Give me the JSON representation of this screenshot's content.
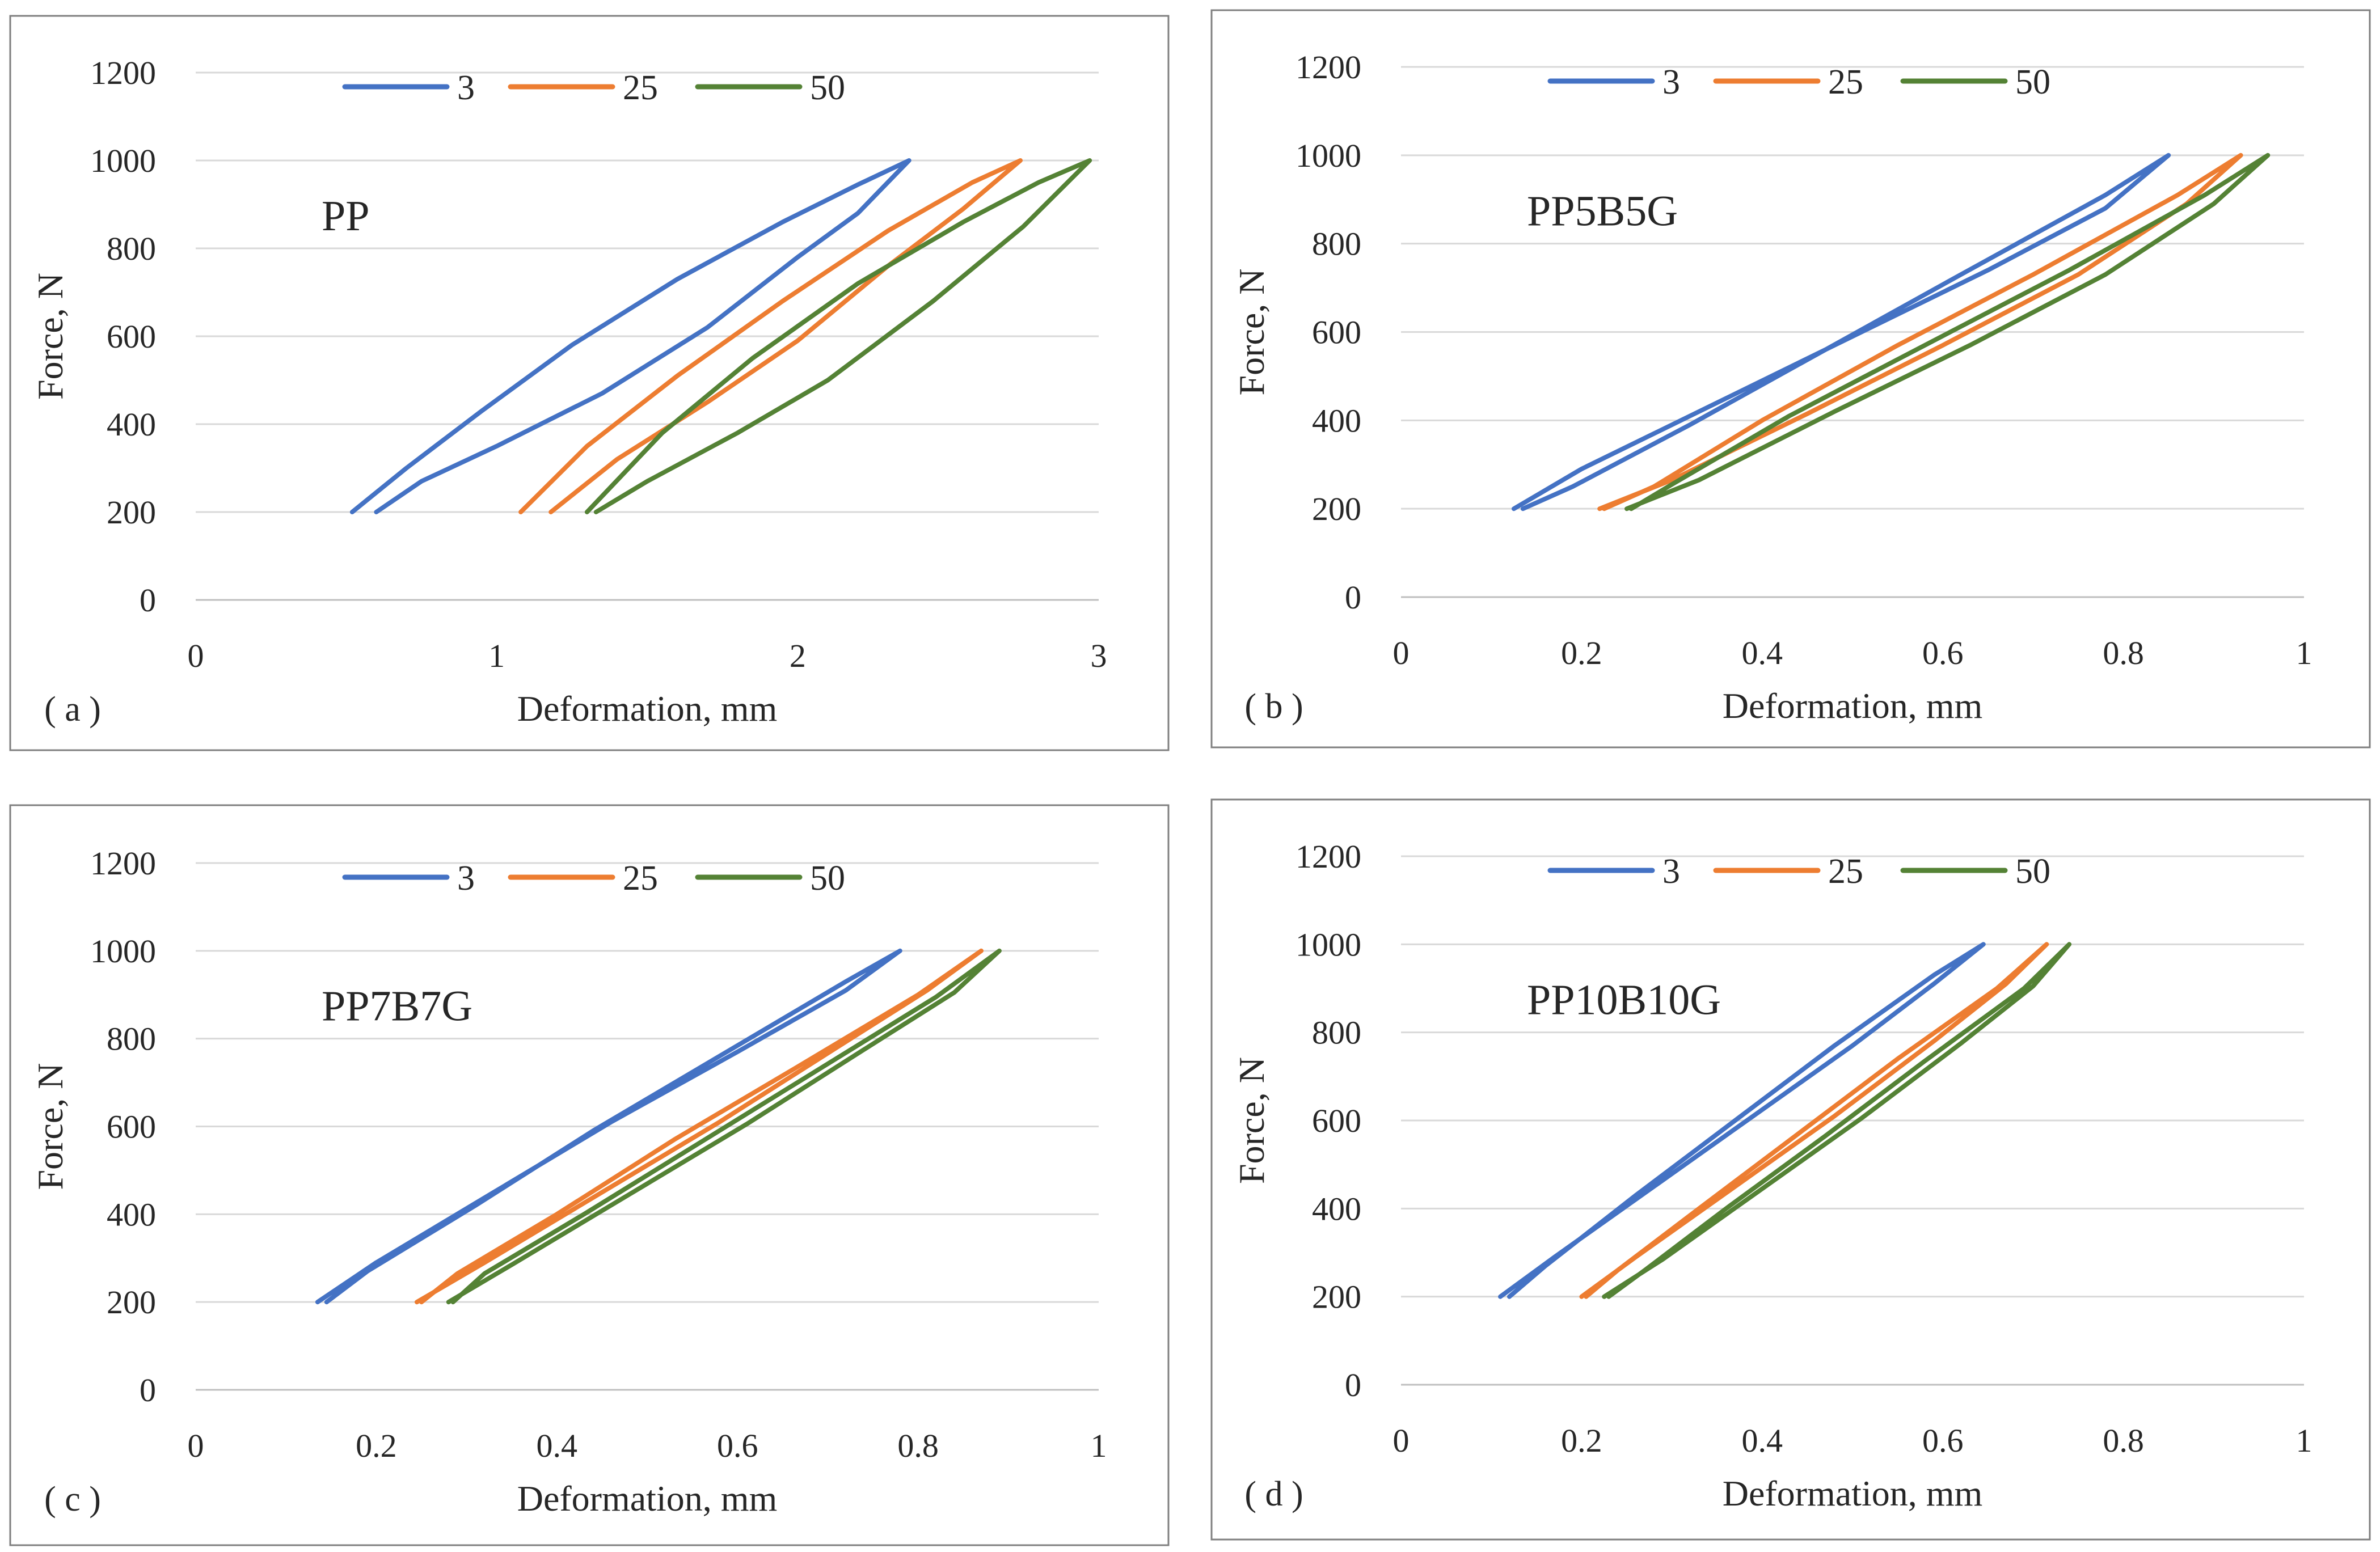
{
  "chart_data": [
    {
      "type": "line",
      "panel_label": "( a )",
      "annotation": "PP",
      "xlabel": "Deformation, mm",
      "ylabel": "Force, N",
      "xlim": [
        0,
        3
      ],
      "ylim": [
        0,
        1200
      ],
      "xticks": [
        0,
        1,
        2,
        3
      ],
      "xtick_labels": [
        "0",
        "1",
        "2",
        "3"
      ],
      "yticks": [
        0,
        200,
        400,
        600,
        800,
        1000,
        1200
      ],
      "ytick_labels": [
        "0",
        "200",
        "400",
        "600",
        "800",
        "1000",
        "1200"
      ],
      "grid": "horizontal",
      "legend_position": "top",
      "series": [
        {
          "name": "3",
          "color": "#4472C4",
          "x": [
            0.52,
            0.7,
            0.95,
            1.25,
            1.6,
            1.95,
            2.2,
            2.37,
            2.2,
            2.0,
            1.7,
            1.35,
            1.0,
            0.75,
            0.6
          ],
          "y": [
            200,
            300,
            430,
            580,
            730,
            860,
            945,
            1000,
            880,
            780,
            620,
            470,
            350,
            270,
            200
          ]
        },
        {
          "name": "25",
          "color": "#ED7D31",
          "x": [
            1.08,
            1.3,
            1.6,
            1.95,
            2.3,
            2.58,
            2.74,
            2.55,
            2.3,
            2.0,
            1.7,
            1.4,
            1.18
          ],
          "y": [
            200,
            350,
            510,
            680,
            840,
            950,
            1000,
            890,
            760,
            590,
            450,
            320,
            200
          ]
        },
        {
          "name": "50",
          "color": "#548235",
          "x": [
            1.3,
            1.55,
            1.85,
            2.2,
            2.55,
            2.8,
            2.97,
            2.75,
            2.45,
            2.1,
            1.8,
            1.5,
            1.33
          ],
          "y": [
            200,
            380,
            550,
            720,
            860,
            950,
            1000,
            850,
            680,
            500,
            380,
            270,
            200
          ]
        }
      ]
    },
    {
      "type": "line",
      "panel_label": "( b )",
      "annotation": "PP5B5G",
      "xlabel": "Deformation, mm",
      "ylabel": "Force, N",
      "xlim": [
        0,
        1
      ],
      "ylim": [
        0,
        1200
      ],
      "xticks": [
        0,
        0.2,
        0.4,
        0.6,
        0.8,
        1
      ],
      "xtick_labels": [
        "0",
        "0.2",
        "0.4",
        "0.6",
        "0.8",
        "1"
      ],
      "yticks": [
        0,
        200,
        400,
        600,
        800,
        1000,
        1200
      ],
      "ytick_labels": [
        "0",
        "200",
        "400",
        "600",
        "800",
        "1000",
        "1200"
      ],
      "grid": "horizontal",
      "legend_position": "top",
      "series": [
        {
          "name": "3",
          "color": "#4472C4",
          "x": [
            0.125,
            0.2,
            0.35,
            0.5,
            0.65,
            0.78,
            0.85,
            0.78,
            0.62,
            0.47,
            0.32,
            0.19,
            0.135
          ],
          "y": [
            200,
            290,
            440,
            590,
            740,
            880,
            1000,
            910,
            730,
            560,
            390,
            250,
            200
          ]
        },
        {
          "name": "25",
          "color": "#ED7D31",
          "x": [
            0.22,
            0.3,
            0.45,
            0.6,
            0.75,
            0.87,
            0.93,
            0.86,
            0.7,
            0.55,
            0.4,
            0.28,
            0.225
          ],
          "y": [
            200,
            265,
            415,
            570,
            730,
            890,
            1000,
            910,
            730,
            570,
            400,
            250,
            200
          ]
        },
        {
          "name": "50",
          "color": "#548235",
          "x": [
            0.25,
            0.33,
            0.48,
            0.63,
            0.78,
            0.9,
            0.96,
            0.89,
            0.74,
            0.58,
            0.43,
            0.3,
            0.255
          ],
          "y": [
            200,
            265,
            420,
            570,
            730,
            890,
            1000,
            910,
            740,
            570,
            410,
            255,
            200
          ]
        }
      ]
    },
    {
      "type": "line",
      "panel_label": "( c )",
      "annotation": "PP7B7G",
      "xlabel": "Deformation, mm",
      "ylabel": "Force, N",
      "xlim": [
        0,
        1
      ],
      "ylim": [
        0,
        1200
      ],
      "xticks": [
        0,
        0.2,
        0.4,
        0.6,
        0.8,
        1
      ],
      "xtick_labels": [
        "0",
        "0.2",
        "0.4",
        "0.6",
        "0.8",
        "1"
      ],
      "yticks": [
        0,
        200,
        400,
        600,
        800,
        1000,
        1200
      ],
      "ytick_labels": [
        "0",
        "200",
        "400",
        "600",
        "800",
        "1000",
        "1200"
      ],
      "grid": "horizontal",
      "legend_position": "top",
      "series": [
        {
          "name": "3",
          "color": "#4472C4",
          "x": [
            0.135,
            0.2,
            0.33,
            0.46,
            0.6,
            0.72,
            0.78,
            0.72,
            0.58,
            0.44,
            0.31,
            0.19,
            0.145
          ],
          "y": [
            200,
            290,
            450,
            610,
            770,
            910,
            1000,
            930,
            760,
            590,
            420,
            270,
            200
          ]
        },
        {
          "name": "25",
          "color": "#ED7D31",
          "x": [
            0.245,
            0.32,
            0.45,
            0.58,
            0.71,
            0.81,
            0.87,
            0.8,
            0.67,
            0.53,
            0.4,
            0.29,
            0.25
          ],
          "y": [
            200,
            290,
            450,
            610,
            780,
            910,
            1000,
            900,
            740,
            570,
            400,
            265,
            200
          ]
        },
        {
          "name": "50",
          "color": "#548235",
          "x": [
            0.28,
            0.35,
            0.48,
            0.61,
            0.74,
            0.84,
            0.89,
            0.82,
            0.69,
            0.56,
            0.43,
            0.32,
            0.285
          ],
          "y": [
            200,
            285,
            445,
            605,
            775,
            905,
            1000,
            895,
            730,
            565,
            400,
            265,
            200
          ]
        }
      ]
    },
    {
      "type": "line",
      "panel_label": "( d )",
      "annotation": "PP10B10G",
      "xlabel": "Deformation, mm",
      "ylabel": "Force, N",
      "xlim": [
        0,
        1
      ],
      "ylim": [
        0,
        1200
      ],
      "xticks": [
        0,
        0.2,
        0.4,
        0.6,
        0.8,
        1
      ],
      "xtick_labels": [
        "0",
        "0.2",
        "0.4",
        "0.6",
        "0.8",
        "1"
      ],
      "yticks": [
        0,
        200,
        400,
        600,
        800,
        1000,
        1200
      ],
      "ytick_labels": [
        "0",
        "200",
        "400",
        "600",
        "800",
        "1000",
        "1200"
      ],
      "grid": "horizontal",
      "legend_position": "top",
      "series": [
        {
          "name": "3",
          "color": "#4472C4",
          "x": [
            0.11,
            0.17,
            0.28,
            0.39,
            0.5,
            0.59,
            0.645,
            0.59,
            0.48,
            0.37,
            0.26,
            0.16,
            0.12
          ],
          "y": [
            200,
            290,
            450,
            610,
            770,
            910,
            1000,
            930,
            770,
            600,
            430,
            270,
            200
          ]
        },
        {
          "name": "25",
          "color": "#ED7D31",
          "x": [
            0.2,
            0.26,
            0.37,
            0.48,
            0.59,
            0.67,
            0.715,
            0.66,
            0.55,
            0.44,
            0.33,
            0.24,
            0.205
          ],
          "y": [
            200,
            290,
            450,
            610,
            780,
            910,
            1000,
            900,
            740,
            570,
            400,
            260,
            200
          ]
        },
        {
          "name": "50",
          "color": "#548235",
          "x": [
            0.225,
            0.29,
            0.4,
            0.51,
            0.62,
            0.7,
            0.74,
            0.69,
            0.58,
            0.47,
            0.36,
            0.27,
            0.23
          ],
          "y": [
            200,
            285,
            445,
            605,
            775,
            905,
            1000,
            900,
            735,
            565,
            400,
            260,
            200
          ]
        }
      ]
    }
  ]
}
